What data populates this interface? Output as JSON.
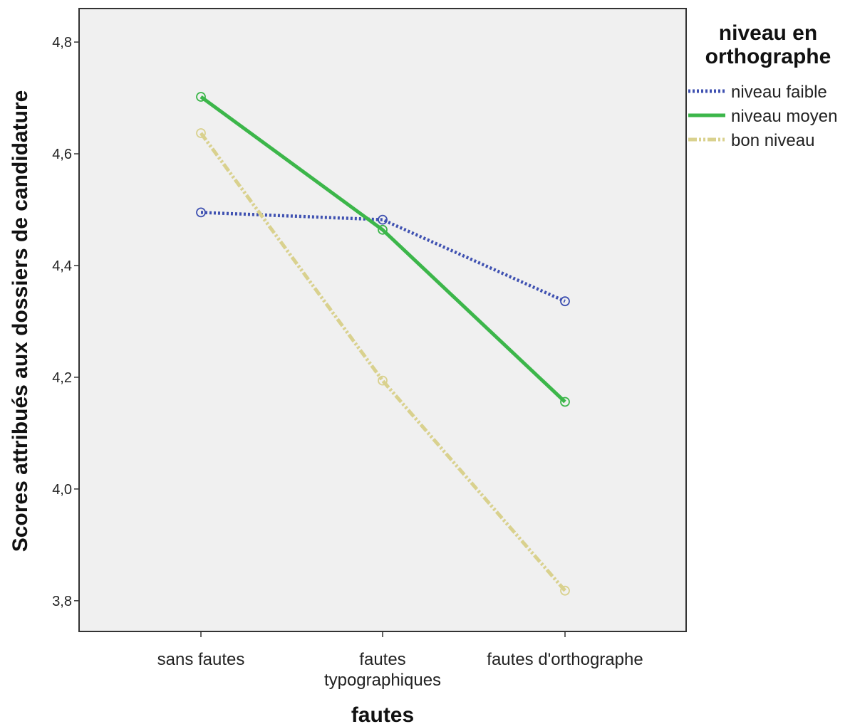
{
  "chart_data": {
    "type": "line",
    "categories": [
      "sans fautes",
      "fautes typographiques",
      "fautes d'orthographe"
    ],
    "category_lines": [
      [
        "sans fautes"
      ],
      [
        "fautes",
        "typographiques"
      ],
      [
        "fautes d'orthographe"
      ]
    ],
    "y_ticks": [
      "3,8",
      "4,0",
      "4,2",
      "4,4",
      "4,6",
      "4,8"
    ],
    "y_tick_values": [
      3.8,
      4.0,
      4.2,
      4.4,
      4.6,
      4.8
    ],
    "ylim": [
      3.745,
      4.86
    ],
    "xlabel": "fautes",
    "ylabel": "Scores attribués aux dossiers de candidature",
    "legend_title_lines": [
      "niveau en",
      "orthographe"
    ],
    "legend_position": "right",
    "grid": false,
    "plot_background": "#f0f0f0",
    "series": [
      {
        "name": "niveau faible",
        "values": [
          4.495,
          4.482,
          4.336
        ],
        "color": "#3f51b1",
        "style": "dotted"
      },
      {
        "name": "niveau moyen",
        "values": [
          4.702,
          4.464,
          4.156
        ],
        "color": "#3cb64a",
        "style": "solid"
      },
      {
        "name": "bon niveau",
        "values": [
          4.637,
          4.194,
          3.818
        ],
        "color": "#d9d18e",
        "style": "dash-dot-dot"
      }
    ]
  }
}
